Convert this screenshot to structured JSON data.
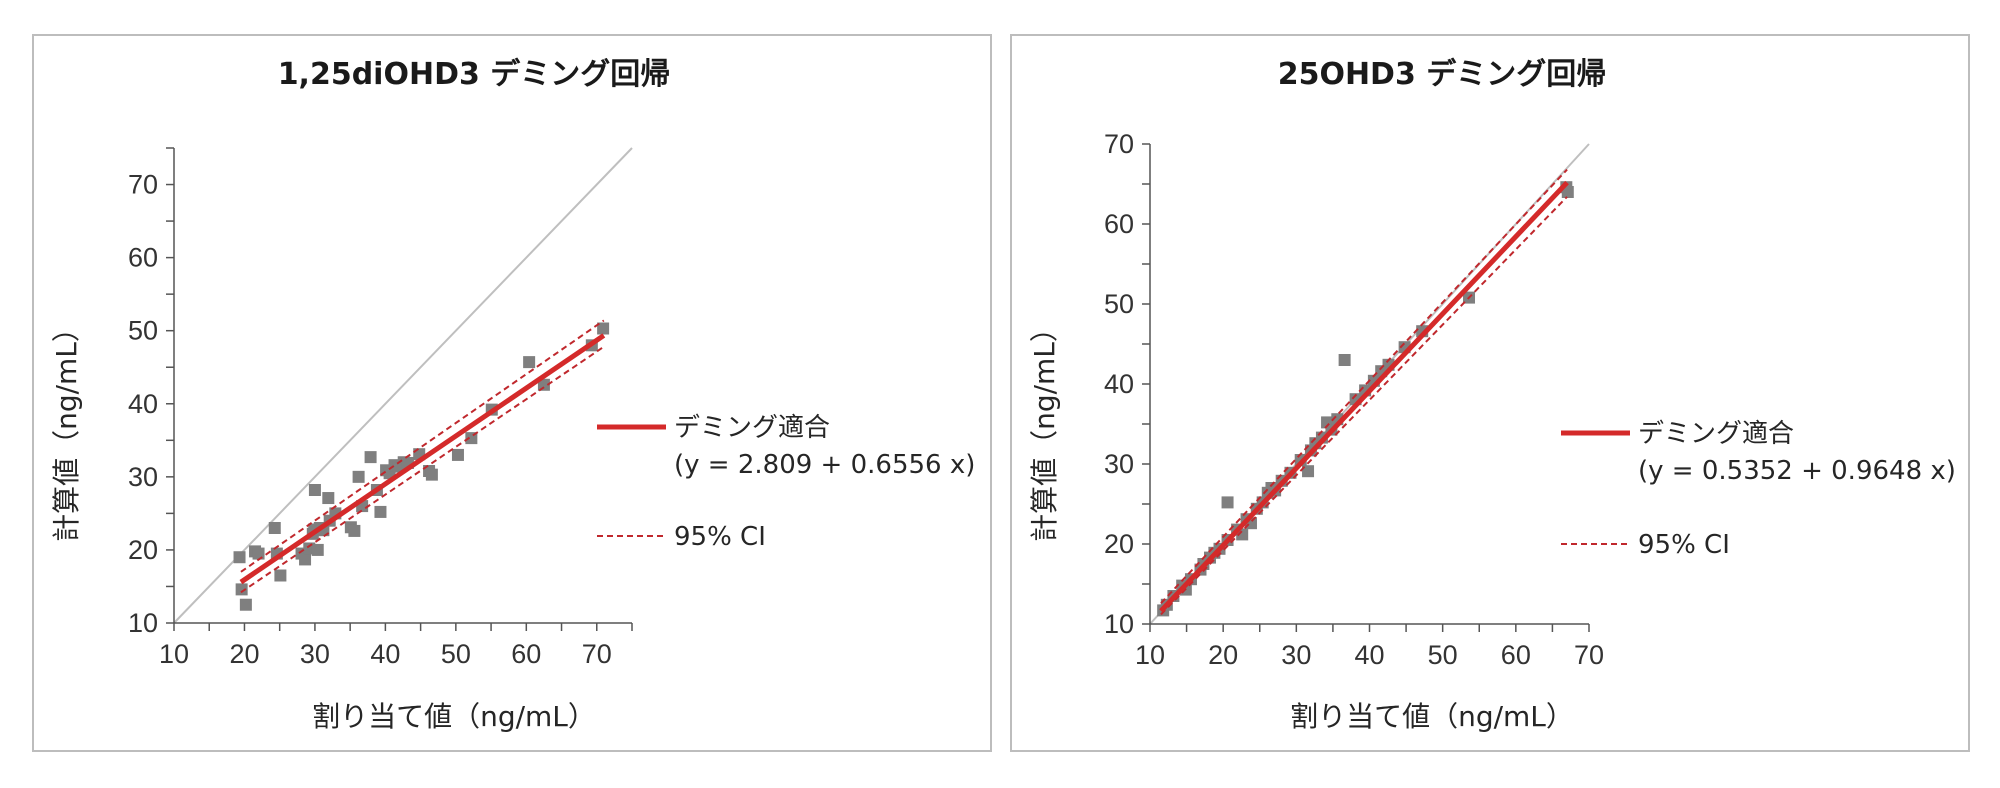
{
  "chart_data": [
    {
      "type": "scatter",
      "title": "1,25diOHD3 デミング回帰",
      "xlabel": "割り当て値（ng/mL）",
      "ylabel": "計算値（ng/mL）",
      "xlim": [
        10,
        75
      ],
      "ylim": [
        10,
        75
      ],
      "xticks": [
        10,
        20,
        30,
        40,
        50,
        60,
        70
      ],
      "yticks": [
        10,
        20,
        30,
        40,
        50,
        60,
        70
      ],
      "grid": false,
      "legend_position": "right",
      "identity_line": true,
      "fit": {
        "intercept": 2.809,
        "slope": 0.6556,
        "x_range": [
          19.5,
          71
        ]
      },
      "ci_band": [
        {
          "x": [
            19.5,
            71
          ],
          "y": [
            17.0,
            51.4
          ]
        },
        {
          "x": [
            19.5,
            71
          ],
          "y": [
            14.2,
            47.8
          ]
        }
      ],
      "legend": [
        {
          "label": "デミング適合",
          "sublabel": "(y = 2.809 + 0.6556 x)",
          "style": "solid",
          "color": "#d42a2a"
        },
        {
          "label": "95% CI",
          "style": "dashed",
          "color": "#c0282d"
        }
      ],
      "points": [
        [
          19.3,
          19.0
        ],
        [
          19.6,
          14.6
        ],
        [
          20.2,
          12.5
        ],
        [
          21.5,
          19.8
        ],
        [
          22.0,
          19.5
        ],
        [
          24.3,
          23.0
        ],
        [
          24.6,
          19.5
        ],
        [
          25.1,
          16.5
        ],
        [
          28.1,
          19.5
        ],
        [
          28.6,
          18.7
        ],
        [
          29.2,
          20.2
        ],
        [
          29.7,
          22.2
        ],
        [
          29.9,
          22.8
        ],
        [
          30.0,
          28.2
        ],
        [
          30.4,
          20.0
        ],
        [
          30.7,
          23.0
        ],
        [
          31.2,
          22.7
        ],
        [
          31.9,
          27.1
        ],
        [
          32.1,
          24.0
        ],
        [
          32.9,
          25.0
        ],
        [
          35.1,
          23.1
        ],
        [
          35.6,
          22.6
        ],
        [
          36.2,
          30.0
        ],
        [
          36.7,
          26.0
        ],
        [
          37.9,
          32.7
        ],
        [
          38.8,
          28.2
        ],
        [
          39.3,
          25.2
        ],
        [
          40.1,
          30.9
        ],
        [
          40.6,
          30.5
        ],
        [
          41.3,
          31.6
        ],
        [
          41.9,
          31.4
        ],
        [
          42.6,
          32.0
        ],
        [
          43.2,
          31.9
        ],
        [
          44.8,
          33.1
        ],
        [
          46.2,
          30.8
        ],
        [
          46.6,
          30.3
        ],
        [
          50.3,
          33.0
        ],
        [
          52.2,
          35.3
        ],
        [
          55.1,
          39.2
        ],
        [
          60.4,
          45.7
        ],
        [
          62.5,
          42.6
        ],
        [
          69.3,
          48.0
        ],
        [
          70.9,
          50.3
        ]
      ]
    },
    {
      "type": "scatter",
      "title": "25OHD3 デミング回帰",
      "xlabel": "割り当て値（ng/mL）",
      "ylabel": "計算値（ng/mL）",
      "xlim": [
        10,
        70
      ],
      "ylim": [
        10,
        70
      ],
      "xticks": [
        10,
        20,
        30,
        40,
        50,
        60,
        70
      ],
      "yticks": [
        10,
        20,
        30,
        40,
        50,
        60,
        70
      ],
      "grid": false,
      "legend_position": "right",
      "identity_line": true,
      "fit": {
        "intercept": 0.5352,
        "slope": 0.9648,
        "x_range": [
          11.5,
          67
        ]
      },
      "ci_band": [
        {
          "x": [
            11.5,
            67
          ],
          "y": [
            12.6,
            66.8
          ]
        },
        {
          "x": [
            11.5,
            67
          ],
          "y": [
            11.2,
            63.4
          ]
        }
      ],
      "legend": [
        {
          "label": "デミング適合",
          "sublabel": "(y = 0.5352 + 0.9648 x)",
          "style": "solid",
          "color": "#d42a2a"
        },
        {
          "label": "95% CI",
          "style": "dashed",
          "color": "#c0282d"
        }
      ],
      "points": [
        [
          11.8,
          11.7
        ],
        [
          12.3,
          12.4
        ],
        [
          13.2,
          13.5
        ],
        [
          14.4,
          14.8
        ],
        [
          14.9,
          14.3
        ],
        [
          15.6,
          15.6
        ],
        [
          16.9,
          16.8
        ],
        [
          17.3,
          17.5
        ],
        [
          18.2,
          18.3
        ],
        [
          18.8,
          18.9
        ],
        [
          19.5,
          19.4
        ],
        [
          20.6,
          20.5
        ],
        [
          20.6,
          25.2
        ],
        [
          21.9,
          21.8
        ],
        [
          22.6,
          21.2
        ],
        [
          23.2,
          23.1
        ],
        [
          23.8,
          22.6
        ],
        [
          24.6,
          24.4
        ],
        [
          25.4,
          25.2
        ],
        [
          26.1,
          26.4
        ],
        [
          26.6,
          27.0
        ],
        [
          27.1,
          26.7
        ],
        [
          28.0,
          27.9
        ],
        [
          29.2,
          28.9
        ],
        [
          30.6,
          30.5
        ],
        [
          31.6,
          29.1
        ],
        [
          32.0,
          31.7
        ],
        [
          32.6,
          32.6
        ],
        [
          33.5,
          33.3
        ],
        [
          34.2,
          35.2
        ],
        [
          34.8,
          34.3
        ],
        [
          35.6,
          35.6
        ],
        [
          36.6,
          43.0
        ],
        [
          38.1,
          38.1
        ],
        [
          39.4,
          39.2
        ],
        [
          40.6,
          40.4
        ],
        [
          41.6,
          41.6
        ],
        [
          42.6,
          42.4
        ],
        [
          44.8,
          44.6
        ],
        [
          47.2,
          46.6
        ],
        [
          53.6,
          50.8
        ],
        [
          66.9,
          64.6
        ],
        [
          67.1,
          64.0
        ]
      ]
    }
  ]
}
